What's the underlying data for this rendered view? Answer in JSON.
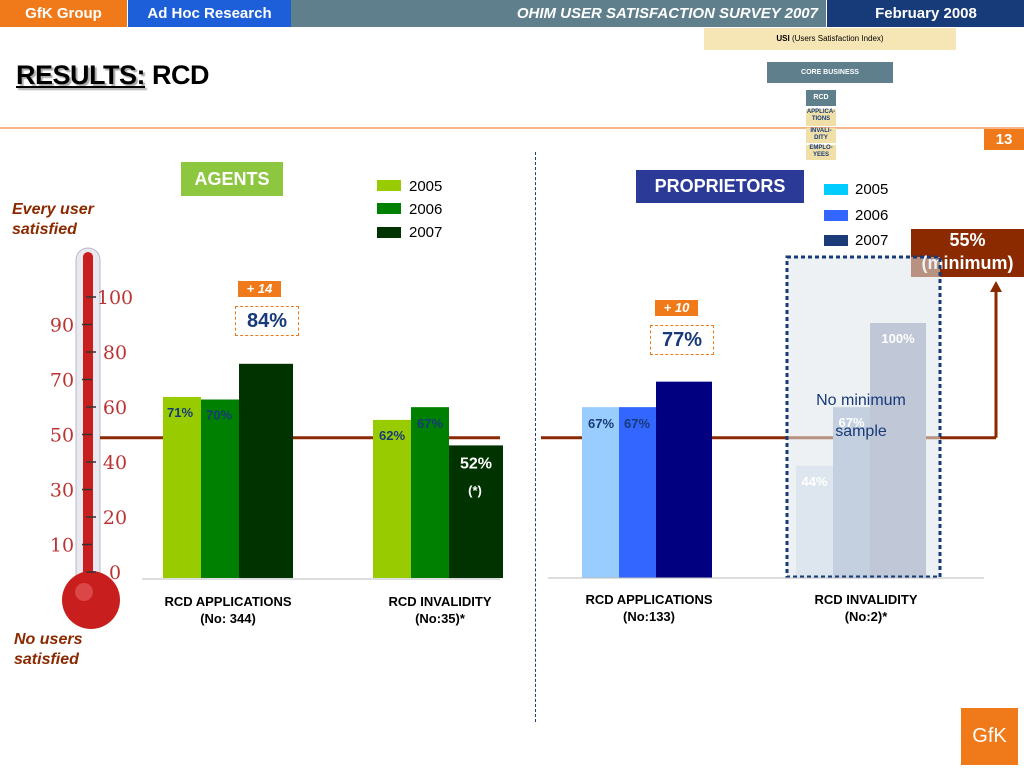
{
  "header": {
    "company": "GfK Group",
    "unit": "Ad Hoc Research",
    "survey": "OHIM USER SATISFACTION SURVEY 2007",
    "date": "February  2008"
  },
  "title": {
    "prefix": "RESULTS:",
    "subject": "RCD"
  },
  "page_number": "13",
  "hierarchy": {
    "usi_bold": "USI",
    "usi_rest": "(Users Satisfaction Index)",
    "core": "CORE BUSINESS",
    "rcd": "RCD",
    "subs": [
      "APPLICA-TIONS",
      "INVALI-DITY",
      "EMPLO-YEES"
    ]
  },
  "thermometer": {
    "top_label": "Every user satisfied",
    "bottom_label": "No users satisfied",
    "ticks": [
      "100",
      "90",
      "80",
      "70",
      "60",
      "50",
      "40",
      "30",
      "20",
      "10",
      "0"
    ]
  },
  "minimum_box": {
    "line1": "55%",
    "line2": "(minimum)"
  },
  "colors": {
    "agents": [
      "#99cc00",
      "#008000",
      "#003300"
    ],
    "proprietors": [
      "#99ccff",
      "#3366ff",
      "#000080"
    ],
    "threshold": "#8b2a00",
    "accent": "#f07a1a"
  },
  "agents": {
    "tag": "AGENTS",
    "legend": [
      "2005",
      "2006",
      "2007"
    ],
    "delta": "+ 14",
    "highlight": "84%",
    "note": "(*)",
    "categories": [
      {
        "line1": "RCD APPLICATIONS",
        "line2": "(No: 344)"
      },
      {
        "line1": "RCD  INVALIDITY",
        "line2": "(No:35)*"
      }
    ]
  },
  "proprietors": {
    "tag": "PROPRIETORS",
    "legend": [
      "2005",
      "2006",
      "2007"
    ],
    "delta": "+ 10",
    "highlight": "77%",
    "no_min_line1": "No minimum",
    "no_min_line2": "sample",
    "categories": [
      {
        "line1": "RCD APPLICATIONS",
        "line2": "(No:133)"
      },
      {
        "line1": "RCD  INVALIDITY",
        "line2": "(No:2)*"
      }
    ]
  },
  "chart_data": [
    {
      "type": "bar",
      "title": "AGENTS",
      "categories": [
        "RCD APPLICATIONS (No: 344)",
        "RCD  INVALIDITY (No:35)*"
      ],
      "series": [
        {
          "name": "2005",
          "values": [
            71,
            62
          ]
        },
        {
          "name": "2006",
          "values": [
            70,
            67
          ]
        },
        {
          "name": "2007",
          "values": [
            84,
            52
          ]
        }
      ],
      "labels": [
        [
          "71%",
          "62%"
        ],
        [
          "70%",
          "67%"
        ],
        [
          "84%",
          "52%"
        ]
      ],
      "ylim": [
        0,
        100
      ],
      "threshold": 55
    },
    {
      "type": "bar",
      "title": "PROPRIETORS",
      "categories": [
        "RCD APPLICATIONS (No:133)",
        "RCD  INVALIDITY (No:2)*"
      ],
      "series": [
        {
          "name": "2005",
          "values": [
            67,
            44
          ]
        },
        {
          "name": "2006",
          "values": [
            67,
            67
          ]
        },
        {
          "name": "2007",
          "values": [
            77,
            100
          ]
        }
      ],
      "labels": [
        [
          "67%",
          "44%"
        ],
        [
          "67%",
          "67%"
        ],
        [
          "77%",
          "100%"
        ]
      ],
      "ylim": [
        0,
        100
      ],
      "threshold": 55
    }
  ]
}
